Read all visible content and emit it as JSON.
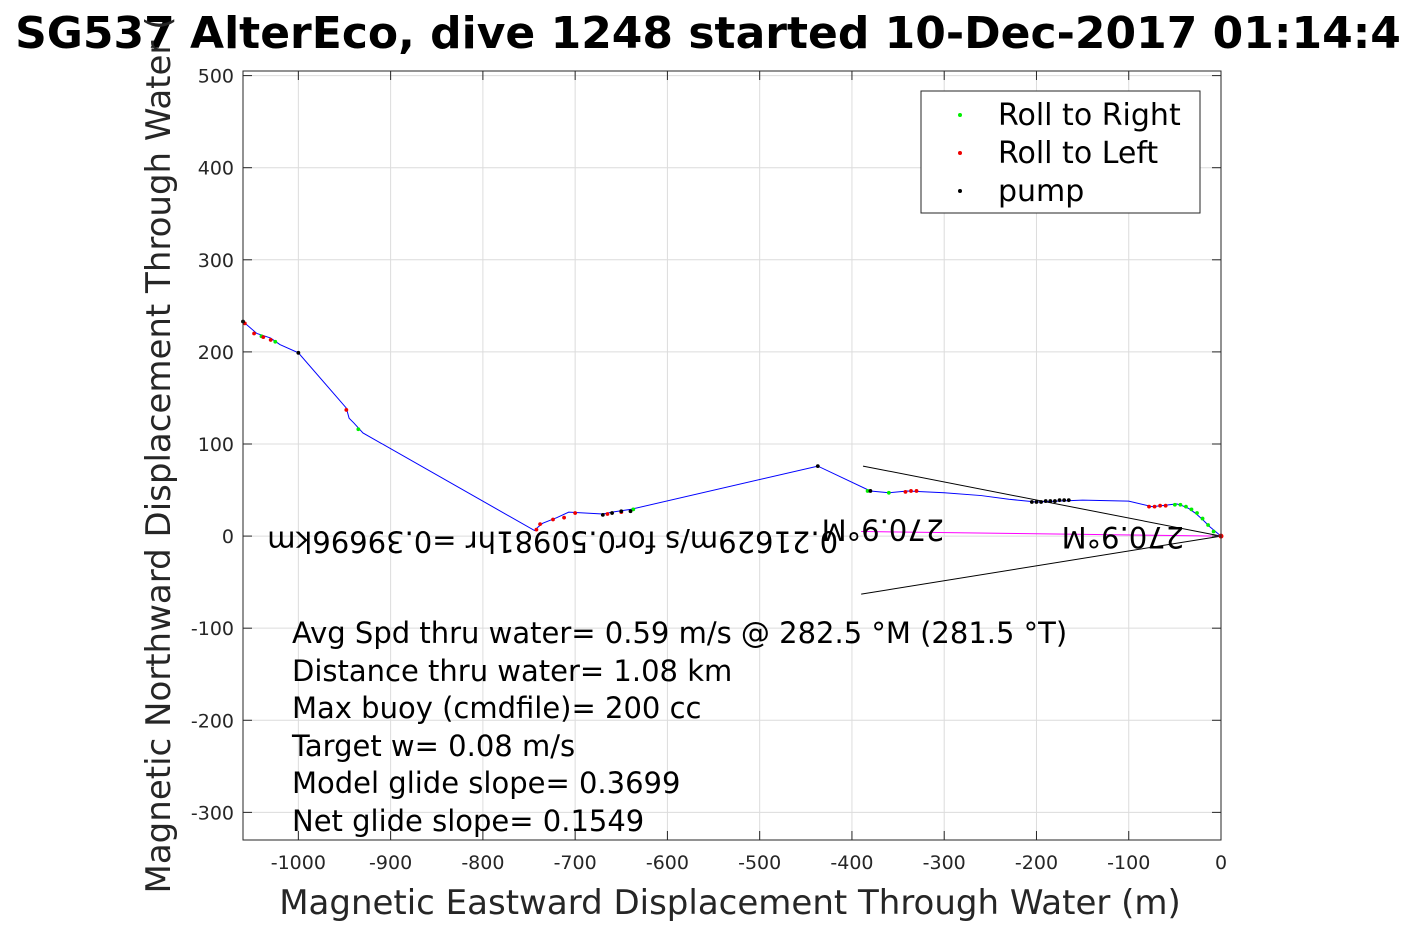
{
  "chart_data": {
    "type": "scatter",
    "title": "SG537 AlterEco, dive 1248 started 10-Dec-2017 01:14:4",
    "xlabel": "Magnetic Eastward Displacement Through Water (m)",
    "ylabel": "Magnetic Northward Displacement Through Water (",
    "xlim": [
      -1060,
      0
    ],
    "ylim": [
      -330,
      505
    ],
    "x_ticks": [
      -1000,
      -900,
      -800,
      -700,
      -600,
      -500,
      -400,
      -300,
      -200,
      -100,
      0
    ],
    "y_ticks": [
      -300,
      -200,
      -100,
      0,
      100,
      200,
      300,
      400,
      500
    ],
    "x_tick_labels": [
      "-1000",
      "-900",
      "-800",
      "-700",
      "-600",
      "-500",
      "-400",
      "-300",
      "-200",
      "-100",
      "0"
    ],
    "y_tick_labels": [
      "-300",
      "-200",
      "-100",
      "0",
      "100",
      "200",
      "300",
      "400",
      "500"
    ],
    "grid": true,
    "legend_position": "top-right",
    "legend": [
      {
        "label": "Roll to Right",
        "color": "#00ee00"
      },
      {
        "label": "Roll to Left",
        "color": "#ee0000"
      },
      {
        "label": "pump",
        "color": "#000000"
      }
    ],
    "track_color": "#0000ff",
    "current_color": "#ff00ff",
    "track": {
      "x": [
        0,
        -12,
        -20,
        -28,
        -35,
        -42,
        -48,
        -56,
        -65,
        -75,
        -100,
        -150,
        -200,
        -230,
        -260,
        -300,
        -340,
        -360,
        -380,
        -437,
        -640,
        -660,
        -670,
        -707,
        -720,
        -735,
        -740,
        -744,
        -930,
        -940,
        -945,
        -948,
        -1000,
        -1020,
        -1030,
        -1045,
        -1060
      ],
      "y": [
        0,
        10,
        18,
        25,
        30,
        33,
        35,
        34,
        33,
        32,
        38,
        39,
        37,
        40,
        44,
        47,
        49,
        47,
        49,
        76,
        29,
        26,
        24,
        26,
        20,
        14,
        10,
        6,
        112,
        123,
        128,
        139,
        199,
        208,
        215,
        220,
        233
      ]
    },
    "roll_right": {
      "x": [
        -8,
        -14,
        -20,
        -26,
        -32,
        -38,
        -44,
        -50,
        -360,
        -383,
        -637,
        -935,
        -1025,
        -1040
      ],
      "y": [
        5,
        12,
        19,
        25,
        29,
        32,
        34,
        34,
        47,
        49,
        29,
        116,
        211,
        217
      ]
    },
    "roll_left": {
      "x": [
        -60,
        -66,
        -72,
        -78,
        -330,
        -336,
        -342,
        -650,
        -665,
        -700,
        -712,
        -724,
        -738,
        -742,
        -948,
        -1030,
        -1038,
        -1048,
        -1058
      ],
      "y": [
        33,
        33,
        32,
        32,
        49,
        49,
        48,
        26,
        24,
        25,
        20,
        18,
        13,
        7,
        137,
        213,
        216,
        220,
        231
      ]
    },
    "pump": {
      "x": [
        -165,
        -170,
        -175,
        -180,
        -185,
        -190,
        -195,
        -200,
        -205,
        -640,
        -650,
        -660,
        -670,
        -437,
        -380,
        -1000,
        -1060
      ],
      "y": [
        39,
        39,
        39,
        38,
        38,
        38,
        37,
        37,
        37,
        27,
        27,
        25,
        23,
        76,
        49,
        199,
        233
      ]
    },
    "lines": [
      {
        "x": [
          0,
          -388
        ],
        "y": [
          0,
          76
        ]
      },
      {
        "x": [
          0,
          -390
        ],
        "y": [
          0,
          -63
        ]
      }
    ],
    "current_segment": {
      "x": [
        0,
        -390
      ],
      "y": [
        0,
        5
      ]
    },
    "flipped_labels": [
      {
        "text": "0.21629m/s for0.50981hr =0.39696km",
        "x": -415,
        "y": 5
      },
      {
        "text": "270.9°M",
        "x": -40,
        "y": 10
      },
      {
        "text": "270.9°M",
        "x": -300,
        "y": 18
      }
    ],
    "annotations": [
      "Avg Spd thru water=  0.59 m/s @ 282.5 °M (281.5 °T)",
      "Distance thru water=  1.08 km",
      "Max buoy (cmdfile)= 200 cc",
      "Target w= 0.08 m/s",
      "Model glide slope= 0.3699",
      "Net glide slope= 0.1549"
    ]
  }
}
